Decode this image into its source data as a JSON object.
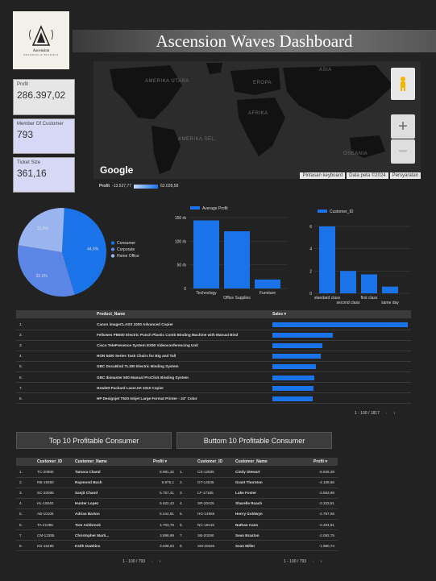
{
  "logo": {
    "title": "Ascension",
    "subtitle": "BRANDING & BUSINESS"
  },
  "title": "Ascension Waves Dashboard",
  "kpis": [
    {
      "label": "Profit",
      "value": "286.397,02"
    },
    {
      "label": "Member Of Customer",
      "value": "793"
    },
    {
      "label": "Ticket Size",
      "value": "361,16"
    }
  ],
  "map": {
    "labels": [
      "AMERIKA UTARA",
      "EROPA",
      "ASIA",
      "AFRIKA",
      "AMERIKA SEL.",
      "OSEANIA"
    ],
    "google": "Google",
    "attribution": [
      "Pintasan keyboard",
      "Data peta ©2024",
      "Persyaratan"
    ],
    "legend": {
      "title": "Profit",
      "min": "-13.527,77",
      "max": "62.028,58"
    }
  },
  "pie": {
    "slices": [
      {
        "label": "Consumer",
        "value": 44.6,
        "color": "#1a73e8",
        "text": "44,6%"
      },
      {
        "label": "Corporate",
        "value": 32.1,
        "color": "#5c86e6",
        "text": "32,1%"
      },
      {
        "label": "Home Office",
        "value": 23.3,
        "color": "#9ab4f0",
        "text": "23,3%"
      }
    ]
  },
  "chart_data": [
    {
      "type": "bar",
      "series": [
        {
          "name": "Average Profit",
          "values": [
            144,
            121,
            19
          ]
        }
      ],
      "categories": [
        "Technology",
        "Office Supplies",
        "Furniture"
      ],
      "yticks": [
        "0",
        "50 rb",
        "100 rb",
        "150 rb"
      ],
      "ylim": [
        0,
        150
      ]
    },
    {
      "type": "bar",
      "series": [
        {
          "name": "Customer_ID",
          "values": [
            6,
            2,
            1.7,
            0.6
          ]
        }
      ],
      "categories": [
        "standard class",
        "second class",
        "first class",
        "same day"
      ],
      "yticks": [
        "0",
        "2",
        "4",
        "6"
      ],
      "ylim": [
        0,
        6.5
      ]
    },
    {
      "type": "bar",
      "orientation": "horizontal",
      "headers": [
        "Product_Name",
        "Sales ▾"
      ],
      "categories": [
        "Canon imageCLASS 2200 Advanced Copier",
        "Fellowes PB500 Electric Punch Plastic Comb Binding Machine with Manual Bind",
        "Cisco TelePresence System EX90 Videoconferencing Unit",
        "HON 5400 Series Task Chairs for Big and Tall",
        "GBC DocuBind TL300 Electric Binding System",
        "GBC Ibimaster 500 Manual ProClick Binding System",
        "Hewlett Packard LaserJet 3310 Copier",
        "HP Designjet T520 Inkjet Large Format Printer - 24\" Color"
      ],
      "values": [
        61600,
        27500,
        22600,
        21900,
        19800,
        19000,
        18800,
        18400
      ]
    }
  ],
  "products": {
    "ranks": [
      "1.",
      "2.",
      "3.",
      "4.",
      "5.",
      "6.",
      "7.",
      "8."
    ],
    "pager": "1 - 100 / 1817"
  },
  "top_section": {
    "label": "Top 10 Profitable Consumer"
  },
  "bottom_section": {
    "label": "Buttom 10 Profitable Consumer"
  },
  "top_table": {
    "headers": [
      "Customer_ID",
      "Customer_Name",
      "Profit ▾"
    ],
    "rows": [
      [
        "1.",
        "TC-20980",
        "Tamara Chand",
        "8.981,32"
      ],
      [
        "2.",
        "RB-19360",
        "Raymond Buch",
        "6.976,1"
      ],
      [
        "3.",
        "SC-20095",
        "Sanjit Chand",
        "5.757,41"
      ],
      [
        "4.",
        "HL-15040",
        "Hunter Lopez",
        "5.622,43"
      ],
      [
        "5.",
        "AB-10105",
        "Adrian Barton",
        "5.444,81"
      ],
      [
        "6.",
        "TA-21385",
        "Tom Ashbrook",
        "4.703,79"
      ],
      [
        "7.",
        "CM-12385",
        "Christopher Marti...",
        "3.899,89"
      ],
      [
        "8.",
        "KD-16495",
        "Keith Dawkins",
        "3.038,63"
      ]
    ],
    "pager": "1 - 100 / 793"
  },
  "bottom_table": {
    "headers": [
      "Customer_ID",
      "Customer_Name",
      "Profit ▾"
    ],
    "rows": [
      [
        "1.",
        "CS-12505",
        "Cindy Stewart",
        "-6.626,39"
      ],
      [
        "2.",
        "GT-14635",
        "Grant Thornton",
        "-4.108,66"
      ],
      [
        "3.",
        "LF-17185",
        "Luke Foster",
        "-3.583,98"
      ],
      [
        "4.",
        "SR-20425",
        "Sharelle Roach",
        "-3.333,91"
      ],
      [
        "5.",
        "HG-14965",
        "Henry Goldwyn",
        "-2.797,96"
      ],
      [
        "6.",
        "NC-18415",
        "Nathan Cano",
        "-2.204,81"
      ],
      [
        "7.",
        "SB-20290",
        "Sean Braxton",
        "-2.082,75"
      ],
      [
        "8.",
        "SM-20320",
        "Sean Miller",
        "-1.980,74"
      ]
    ],
    "pager": "1 - 100 / 793"
  }
}
